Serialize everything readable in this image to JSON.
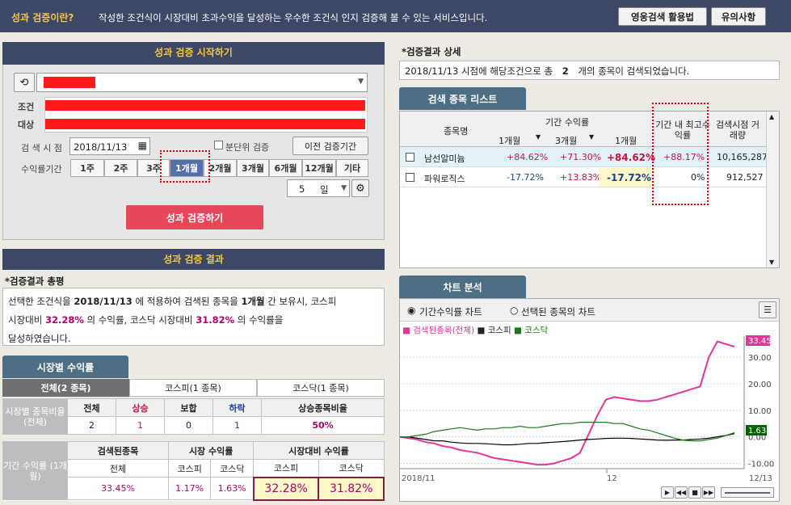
{
  "header": {
    "title": "성과 검증이란?",
    "desc": "작성한 조건식이 시장대비 초과수익을 달성하는 우수한 조건식 인지 검증해 볼 수 있는 서비스입니다.",
    "btn1": "영웅검색 활용법",
    "btn2": "유의사항"
  },
  "start": {
    "title": "성과 검증 시작하기",
    "cond_label": "조건",
    "target_label": "대상",
    "search_point_label": "검 색 시 점",
    "date": "2018/11/13",
    "split_label": "분단위 검증",
    "prev_btn": "이전 검증기간",
    "period_label": "수익률기간",
    "periods": [
      "1주",
      "2주",
      "3주",
      "1개월",
      "2개월",
      "3개월",
      "6개월",
      "12개월",
      "기타"
    ],
    "selected_period": "1개월",
    "days_value": "5",
    "days_unit": "일",
    "run_btn": "성과 검증하기"
  },
  "result": {
    "title": "성과 검증 결과",
    "summary_title": "*검증결과 총평",
    "t1": "선택한 조건식을",
    "date": "2018/11/13",
    "t2": "에 적용하여 검색된 종목을",
    "period": "1개월",
    "t3": "간 보유시, 코스피",
    "t4": "시장대비",
    "kospi": "32.28%",
    "t5": "의 수익률, 코스닥 시장대비",
    "kosdaq": "31.82%",
    "t6": "의 수익률을",
    "t7": "달성하였습니다."
  },
  "market": {
    "tab": "시장별 수익률",
    "subtabs": [
      "전체(2 종목)",
      "코스피(1 종목)",
      "코스닥(1 종목)"
    ],
    "row_label": "시장별 종목비율 (전체)",
    "headers": [
      "전체",
      "상승",
      "보합",
      "하락",
      "상승종목비율"
    ],
    "values": [
      "2",
      "1",
      "0",
      "1",
      "50%"
    ],
    "period_label": "기간 수익률 (1개월)",
    "g1": "검색된종목",
    "g2": "시장 수익률",
    "g3": "시장대비 수익률",
    "sub1": "전체",
    "sub2": "코스피",
    "sub3": "코스닥",
    "sub4": "코스피",
    "sub5": "코스닥",
    "v1": "33.45%",
    "v2": "1.17%",
    "v3": "1.63%",
    "v4": "32.28%",
    "v5": "31.82%"
  },
  "detail": {
    "title": "*검증결과 상세",
    "t1": "2018/11/13 시점에 해당조건으로 총",
    "count": "2",
    "t2": "개의 종목이 검색되었습니다."
  },
  "list": {
    "tab": "검색 종목 리스트",
    "h_name": "종목명",
    "h_period": "기간 수익률",
    "h_max": "기간 내 최고수익률",
    "h_vol": "검색시점 거래량",
    "sub": [
      "1개월",
      "3개월",
      "1개월"
    ],
    "rows": [
      {
        "name": "남선알미늄",
        "a": "+84.62%",
        "b": "+71.30%",
        "c": "+84.62%",
        "max": "+88.17%",
        "vol": "10,165,287"
      },
      {
        "name": "파워로직스",
        "a": "-17.72%",
        "b": "+13.83%",
        "c": "-17.72%",
        "max": "0%",
        "vol": "912,527"
      }
    ]
  },
  "chart": {
    "tab": "차트 분석",
    "radio1": "기간수익률 차트",
    "radio2": "선택된 종목의 차트",
    "legend": [
      "검색된종목(전체)",
      "코스피",
      "코스닥"
    ],
    "yticks": [
      "30.00",
      "20.00",
      "10.00",
      "0.00",
      "-10.00"
    ],
    "last_value": "33.45",
    "last_value2": "1.63",
    "xlabels": [
      "2018/11",
      "12",
      "12/13"
    ],
    "chart_data": {
      "type": "line",
      "ylim": [
        -12,
        38
      ],
      "series": [
        {
          "name": "검색된종목(전체)",
          "color": "#e6339a",
          "values": [
            0,
            -0.5,
            -1,
            -2,
            -2.5,
            -3.5,
            -4,
            -5,
            -5.5,
            -6,
            -7,
            -8,
            -8.5,
            -9,
            -9.5,
            -10,
            -10.5,
            -10.5,
            -10,
            -9,
            -8,
            -6,
            1,
            8,
            14,
            15,
            14.5,
            14,
            13.5,
            13.5,
            14,
            15,
            16,
            17,
            18,
            19,
            30,
            36,
            35,
            34
          ]
        },
        {
          "name": "코스피",
          "color": "#000000",
          "values": [
            0,
            0,
            -0.5,
            -1,
            -1.5,
            -1.5,
            -2,
            -2.3,
            -2.5,
            -2.5,
            -2.6,
            -2.8,
            -3,
            -3,
            -2.8,
            -2.5,
            -2.5,
            -2.2,
            -2,
            -1.8,
            -1.5,
            -1.2,
            -1,
            -0.8,
            -0.6,
            -0.5,
            -0.5,
            -0.6,
            -0.8,
            -1,
            -1.2,
            -1.3,
            -1.2,
            -1.2,
            -1,
            -0.8,
            -0.5,
            0,
            0.5,
            1.2
          ]
        },
        {
          "name": "코스닥",
          "color": "#1a7a1a",
          "values": [
            0,
            0,
            0.5,
            1,
            2,
            2.5,
            3,
            3.5,
            3,
            2.5,
            3,
            3,
            3.5,
            3.5,
            4,
            3.5,
            3.5,
            4,
            4.5,
            5,
            5,
            5.5,
            5.5,
            5.5,
            5.5,
            5,
            5,
            4,
            3,
            2.5,
            1.5,
            0.5,
            -0.5,
            -1.2,
            -1.5,
            -1.5,
            -1,
            -0.5,
            0.5,
            1.6
          ]
        }
      ]
    }
  }
}
